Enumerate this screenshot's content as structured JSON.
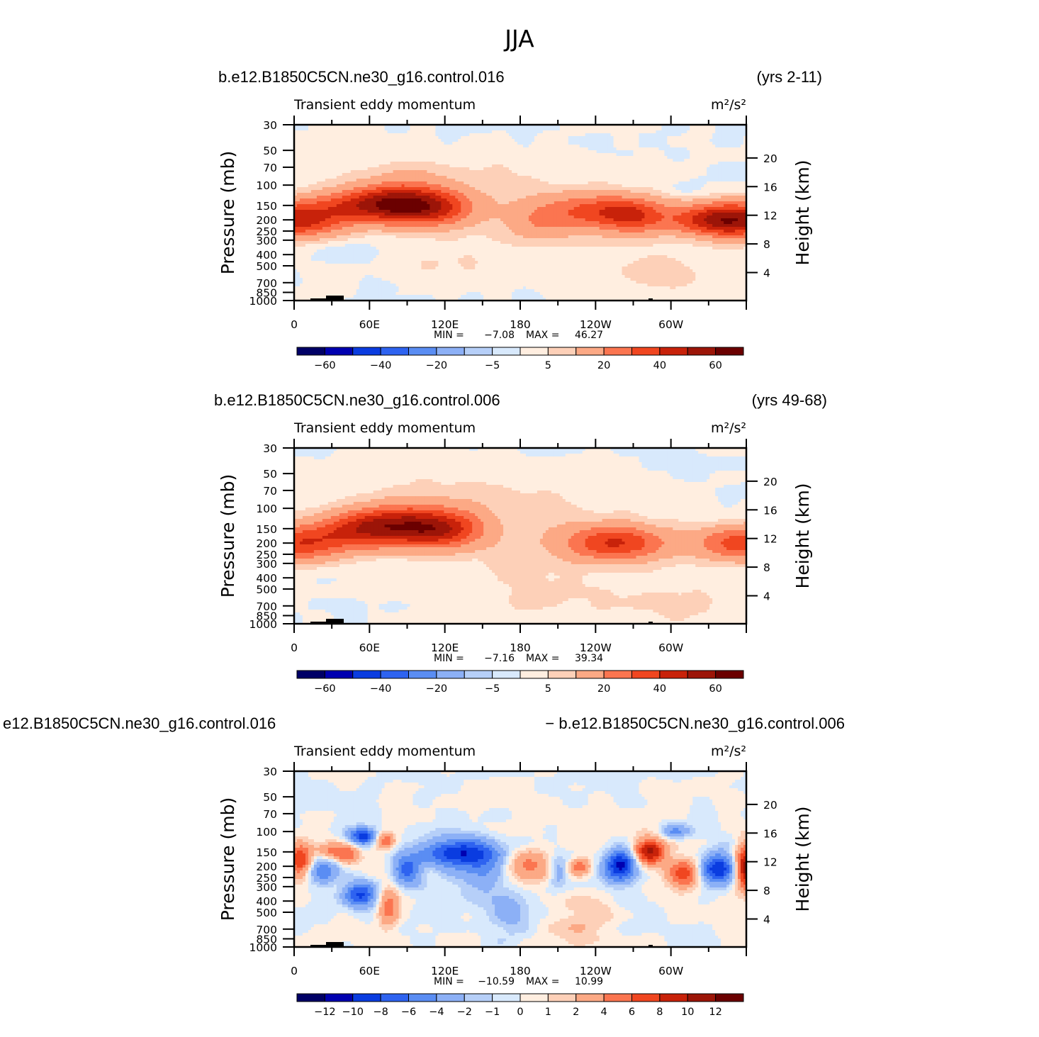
{
  "figure": {
    "main_title": "JJA"
  },
  "palette": [
    "#000066",
    "#0000b0",
    "#0a3ce0",
    "#2e63f0",
    "#5a8df3",
    "#8cb0f6",
    "#b6cff8",
    "#d8e9fc",
    "#ffeee0",
    "#fdd0b8",
    "#fca985",
    "#fb7550",
    "#f04620",
    "#c8220a",
    "#9c1508",
    "#6b0000"
  ],
  "chart_data": [
    {
      "type": "heatmap",
      "title_left": "b.e12.B1850C5CN.ne30_g16.control.016",
      "title_right": "(yrs 2-11)",
      "subtitle_left": "Transient eddy momentum",
      "units": "m²/s²",
      "ylabel": "Pressure (mb)",
      "ylabel_right": "Height (km)",
      "x_ticks": [
        "0",
        "60E",
        "120E",
        "180",
        "120W",
        "60W"
      ],
      "xlim": [
        0,
        360
      ],
      "y_ticks_left": [
        "30",
        "50",
        "70",
        "100",
        "150",
        "200",
        "250",
        "300",
        "400",
        "500",
        "700",
        "850",
        "1000"
      ],
      "y_ticks_right": [
        "20",
        "16",
        "12",
        "8",
        "4"
      ],
      "ylim": [
        1000,
        30
      ],
      "stats": {
        "min_label": "MIN =",
        "min": "-7.08",
        "max_label": "MAX =",
        "max": "46.27"
      },
      "colorbar_labels": [
        "-60",
        "-40",
        "-20",
        "-5",
        "5",
        "20",
        "40",
        "60"
      ],
      "levels": [
        -70,
        -60,
        -50,
        -40,
        -30,
        -20,
        -10,
        -5,
        0,
        5,
        10,
        20,
        30,
        40,
        50,
        60,
        70
      ],
      "features": [
        {
          "lon": 0,
          "p": 200,
          "amp": 46,
          "wlon": 28,
          "wp": 0.25
        },
        {
          "lon": 360,
          "p": 200,
          "amp": 44,
          "wlon": 28,
          "wp": 0.25
        },
        {
          "lon": 60,
          "p": 150,
          "amp": 32,
          "wlon": 32,
          "wp": 0.22
        },
        {
          "lon": 85,
          "p": 140,
          "amp": 34,
          "wlon": 25,
          "wp": 0.3
        },
        {
          "lon": 115,
          "p": 160,
          "amp": 26,
          "wlon": 22,
          "wp": 0.25
        },
        {
          "lon": 195,
          "p": 200,
          "amp": 12,
          "wlon": 18,
          "wp": 0.3
        },
        {
          "lon": 245,
          "p": 170,
          "amp": 32,
          "wlon": 28,
          "wp": 0.25
        },
        {
          "lon": 275,
          "p": 190,
          "amp": 22,
          "wlon": 18,
          "wp": 0.25
        },
        {
          "lon": 330,
          "p": 200,
          "amp": 28,
          "wlon": 22,
          "wp": 0.22
        },
        {
          "lon": 180,
          "p": 180,
          "amp": 6,
          "wlon": 70,
          "wp": 0.5
        },
        {
          "lon": 120,
          "p": 80,
          "amp": 5,
          "wlon": 70,
          "wp": 0.3
        },
        {
          "lon": 290,
          "p": 600,
          "amp": 6,
          "wlon": 45,
          "wp": 0.4
        },
        {
          "lon": 120,
          "p": 500,
          "amp": 5,
          "wlon": 30,
          "wp": 0.25
        },
        {
          "lon": 45,
          "p": 380,
          "amp": -6,
          "wlon": 14,
          "wp": 0.12
        },
        {
          "lon": 310,
          "p": 110,
          "amp": -4,
          "wlon": 10,
          "wp": 0.1
        }
      ]
    },
    {
      "type": "heatmap",
      "title_left": "b.e12.B1850C5CN.ne30_g16.control.006",
      "title_right": "(yrs 49-68)",
      "subtitle_left": "Transient eddy momentum",
      "units": "m²/s²",
      "ylabel": "Pressure (mb)",
      "ylabel_right": "Height (km)",
      "x_ticks": [
        "0",
        "60E",
        "120E",
        "180",
        "120W",
        "60W"
      ],
      "xlim": [
        0,
        360
      ],
      "y_ticks_left": [
        "30",
        "50",
        "70",
        "100",
        "150",
        "200",
        "250",
        "300",
        "400",
        "500",
        "700",
        "850",
        "1000"
      ],
      "y_ticks_right": [
        "20",
        "16",
        "12",
        "8",
        "4"
      ],
      "ylim": [
        1000,
        30
      ],
      "stats": {
        "min_label": "MIN =",
        "min": "-7.16",
        "max_label": "MAX =",
        "max": "39.34"
      },
      "colorbar_labels": [
        "-60",
        "-40",
        "-20",
        "-5",
        "5",
        "20",
        "40",
        "60"
      ],
      "levels": [
        -70,
        -60,
        -50,
        -40,
        -30,
        -20,
        -10,
        -5,
        0,
        5,
        10,
        20,
        30,
        40,
        50,
        60,
        70
      ],
      "features": [
        {
          "lon": 0,
          "p": 200,
          "amp": 38,
          "wlon": 30,
          "wp": 0.25
        },
        {
          "lon": 360,
          "p": 200,
          "amp": 36,
          "wlon": 28,
          "wp": 0.25
        },
        {
          "lon": 55,
          "p": 150,
          "amp": 30,
          "wlon": 26,
          "wp": 0.25
        },
        {
          "lon": 90,
          "p": 140,
          "amp": 36,
          "wlon": 30,
          "wp": 0.28
        },
        {
          "lon": 120,
          "p": 155,
          "amp": 28,
          "wlon": 22,
          "wp": 0.25
        },
        {
          "lon": 257,
          "p": 200,
          "amp": 38,
          "wlon": 28,
          "wp": 0.25
        },
        {
          "lon": 180,
          "p": 180,
          "amp": 6,
          "wlon": 75,
          "wp": 0.6
        },
        {
          "lon": 125,
          "p": 75,
          "amp": 5,
          "wlon": 75,
          "wp": 0.35
        },
        {
          "lon": 300,
          "p": 650,
          "amp": 6,
          "wlon": 40,
          "wp": 0.4
        },
        {
          "lon": 190,
          "p": 600,
          "amp": 5,
          "wlon": 40,
          "wp": 0.4
        }
      ]
    },
    {
      "type": "heatmap",
      "title_left": "e12.B1850C5CN.ne30_g16.control.016",
      "title_right": "- b.e12.B1850C5CN.ne30_g16.control.006",
      "subtitle_left": "Transient eddy momentum",
      "units": "m²/s²",
      "ylabel": "Pressure (mb)",
      "ylabel_right": "Height (km)",
      "x_ticks": [
        "0",
        "60E",
        "120E",
        "180",
        "120W",
        "60W"
      ],
      "xlim": [
        0,
        360
      ],
      "y_ticks_left": [
        "30",
        "50",
        "70",
        "100",
        "150",
        "200",
        "250",
        "300",
        "400",
        "500",
        "700",
        "850",
        "1000"
      ],
      "y_ticks_right": [
        "20",
        "16",
        "12",
        "8",
        "4"
      ],
      "ylim": [
        1000,
        30
      ],
      "stats": {
        "min_label": "MIN =",
        "min": "-10.59",
        "max_label": "MAX =",
        "max": "10.99"
      },
      "colorbar_labels": [
        "-12",
        "-10",
        "-8",
        "-6",
        "-4",
        "-2",
        "-1",
        "0",
        "1",
        "2",
        "4",
        "6",
        "8",
        "10",
        "12"
      ],
      "levels": [
        -14,
        -12,
        -10,
        -8,
        -6,
        -4,
        -2,
        -1,
        0,
        1,
        2,
        4,
        6,
        8,
        10,
        12,
        14
      ],
      "features": [
        {
          "lon": 5,
          "p": 180,
          "amp": 8,
          "wlon": 7,
          "wp": 0.25
        },
        {
          "lon": 22,
          "p": 220,
          "amp": -5,
          "wlon": 9,
          "wp": 0.2
        },
        {
          "lon": 30,
          "p": 150,
          "amp": 5,
          "wlon": 8,
          "wp": 0.12
        },
        {
          "lon": 43,
          "p": 160,
          "amp": 5,
          "wlon": 6,
          "wp": 0.15
        },
        {
          "lon": 55,
          "p": 110,
          "amp": -9,
          "wlon": 8,
          "wp": 0.12
        },
        {
          "lon": 52,
          "p": 350,
          "amp": -8,
          "wlon": 9,
          "wp": 0.18
        },
        {
          "lon": 72,
          "p": 120,
          "amp": 6,
          "wlon": 6,
          "wp": 0.12
        },
        {
          "lon": 75,
          "p": 450,
          "amp": 5,
          "wlon": 6,
          "wp": 0.3
        },
        {
          "lon": 90,
          "p": 220,
          "amp": -7,
          "wlon": 8,
          "wp": 0.2
        },
        {
          "lon": 130,
          "p": 150,
          "amp": -9,
          "wlon": 22,
          "wp": 0.2
        },
        {
          "lon": 150,
          "p": 220,
          "amp": -4,
          "wlon": 15,
          "wp": 0.35
        },
        {
          "lon": 185,
          "p": 200,
          "amp": 5,
          "wlon": 14,
          "wp": 0.25
        },
        {
          "lon": 228,
          "p": 200,
          "amp": 5,
          "wlon": 6,
          "wp": 0.12
        },
        {
          "lon": 210,
          "p": 220,
          "amp": -4,
          "wlon": 5,
          "wp": 0.2
        },
        {
          "lon": 260,
          "p": 200,
          "amp": -11,
          "wlon": 9,
          "wp": 0.22
        },
        {
          "lon": 283,
          "p": 150,
          "amp": 11,
          "wlon": 9,
          "wp": 0.18
        },
        {
          "lon": 310,
          "p": 230,
          "amp": 8,
          "wlon": 9,
          "wp": 0.2
        },
        {
          "lon": 303,
          "p": 100,
          "amp": -4,
          "wlon": 8,
          "wp": 0.1
        },
        {
          "lon": 338,
          "p": 210,
          "amp": -10,
          "wlon": 10,
          "wp": 0.22
        },
        {
          "lon": 360,
          "p": 200,
          "amp": 12,
          "wlon": 6,
          "wp": 0.3
        },
        {
          "lon": 170,
          "p": 500,
          "amp": -3,
          "wlon": 12,
          "wp": 0.3
        },
        {
          "lon": 230,
          "p": 600,
          "amp": 2,
          "wlon": 20,
          "wp": 0.4
        }
      ]
    }
  ]
}
